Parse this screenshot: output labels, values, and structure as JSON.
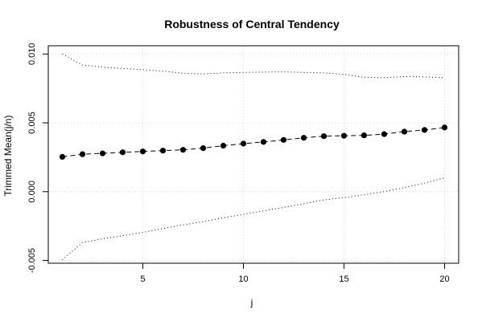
{
  "chart_data": {
    "type": "line",
    "title": "Robustness of Central Tendency",
    "xlabel": "j",
    "ylabel": "Trimmed Mean(j/n)",
    "xlim": [
      0.3,
      20.7
    ],
    "ylim": [
      -0.0052,
      0.0106
    ],
    "x_ticks": [
      5,
      10,
      15,
      20
    ],
    "x_tick_labels": [
      "5",
      "10",
      "15",
      "20"
    ],
    "y_ticks": [
      -0.005,
      0.0,
      0.005,
      0.01
    ],
    "y_tick_labels": [
      "-0.005",
      "0.000",
      "0.005",
      "0.010"
    ],
    "grid": true,
    "legend": "none",
    "x": [
      1,
      2,
      3,
      4,
      5,
      6,
      7,
      8,
      9,
      10,
      11,
      12,
      13,
      14,
      15,
      16,
      17,
      18,
      19,
      20
    ],
    "series": [
      {
        "role": "trimmed-mean",
        "style": "dashed line with filled circles",
        "color": "#000000",
        "values": [
          0.00253,
          0.00272,
          0.00278,
          0.00286,
          0.00292,
          0.00298,
          0.00304,
          0.00316,
          0.00334,
          0.00349,
          0.00361,
          0.00376,
          0.00391,
          0.00403,
          0.00406,
          0.00409,
          0.00418,
          0.00436,
          0.00448,
          0.00466
        ]
      },
      {
        "role": "upper-band",
        "style": "dotted line",
        "color": "#000000",
        "values": [
          0.01,
          0.0092,
          0.00905,
          0.00895,
          0.00886,
          0.00875,
          0.0086,
          0.00855,
          0.00863,
          0.00866,
          0.00869,
          0.00871,
          0.00866,
          0.00863,
          0.00852,
          0.0083,
          0.00828,
          0.00836,
          0.00833,
          0.00828
        ]
      },
      {
        "role": "lower-band",
        "style": "dotted line",
        "color": "#000000",
        "values": [
          -0.00495,
          -0.0037,
          -0.00342,
          -0.0032,
          -0.00296,
          -0.00268,
          -0.00242,
          -0.00218,
          -0.0019,
          -0.00165,
          -0.0014,
          -0.00115,
          -0.00088,
          -0.0006,
          -0.00043,
          -0.00022,
          0.0,
          0.0003,
          0.00062,
          0.001
        ]
      }
    ]
  }
}
